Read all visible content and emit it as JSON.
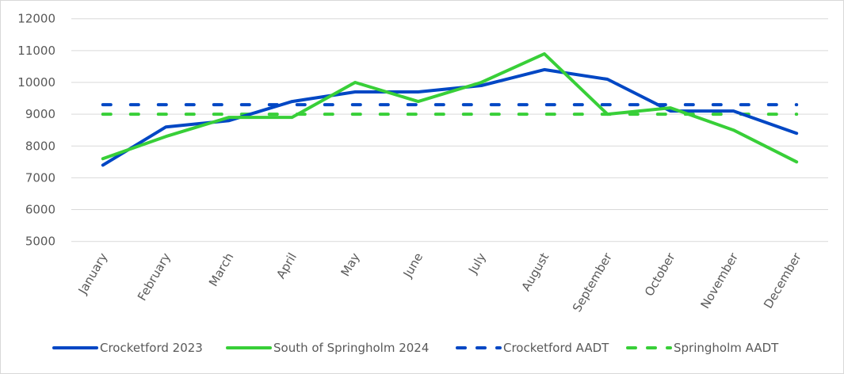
{
  "chart_data": {
    "type": "line",
    "title": "",
    "xlabel": "",
    "ylabel": "",
    "ylim": [
      5000,
      12000
    ],
    "yticks": [
      5000,
      6000,
      7000,
      8000,
      9000,
      10000,
      11000,
      12000
    ],
    "grid": true,
    "legend_position": "bottom",
    "categories": [
      "January",
      "February",
      "March",
      "April",
      "May",
      "June",
      "July",
      "August",
      "September",
      "October",
      "November",
      "December"
    ],
    "series": [
      {
        "name": "Crocketford 2023",
        "color": "#0047c4",
        "dash": false,
        "values": [
          7400,
          8600,
          8800,
          9400,
          9700,
          9700,
          9900,
          10400,
          10100,
          9100,
          9100,
          8400
        ]
      },
      {
        "name": "South of Springholm 2024",
        "color": "#38cf38",
        "dash": false,
        "values": [
          7600,
          8300,
          8900,
          8900,
          10000,
          9400,
          10000,
          10900,
          9000,
          9200,
          8500,
          7500
        ]
      },
      {
        "name": "Crocketford AADT",
        "color": "#0047c4",
        "dash": true,
        "values": [
          9300,
          9300,
          9300,
          9300,
          9300,
          9300,
          9300,
          9300,
          9300,
          9300,
          9300,
          9300
        ]
      },
      {
        "name": "Springholm AADT",
        "color": "#38cf38",
        "dash": true,
        "values": [
          9000,
          9000,
          9000,
          9000,
          9000,
          9000,
          9000,
          9000,
          9000,
          9000,
          9000,
          9000
        ]
      }
    ]
  }
}
